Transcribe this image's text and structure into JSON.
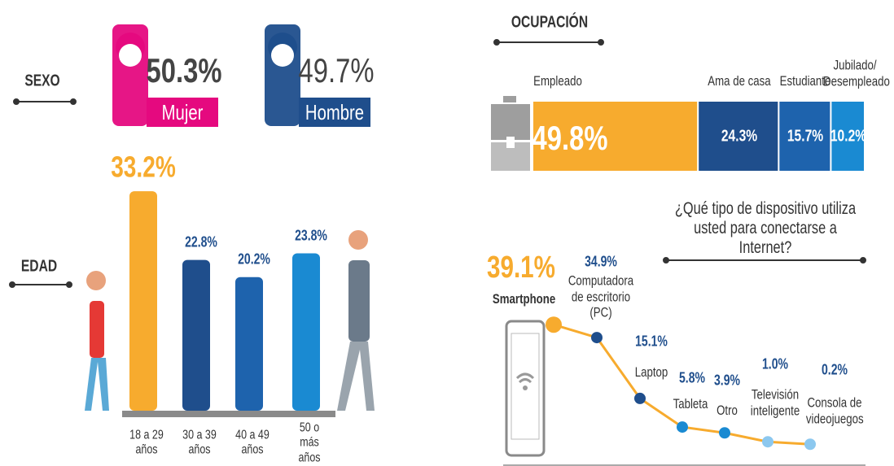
{
  "chart_data": [
    {
      "type": "pictogram",
      "title": "SEXO",
      "categories": [
        "Mujer",
        "Hombre"
      ],
      "values": [
        50.3,
        49.7
      ],
      "value_labels": [
        "50.3%",
        "49.7%"
      ],
      "colors": [
        "#e5097f",
        "#1f4e8c"
      ]
    },
    {
      "type": "bar",
      "title": "EDAD",
      "categories": [
        "18 a 29 años",
        "30 a 39 años",
        "40 a 49 años",
        "50 o más años"
      ],
      "values": [
        33.2,
        22.8,
        20.2,
        23.8
      ],
      "value_labels": [
        "33.2%",
        "22.8%",
        "20.2%",
        "23.8%"
      ],
      "colors": [
        "#f7ab2e",
        "#1f4e8c",
        "#1e63ad",
        "#1a8ad2"
      ]
    },
    {
      "type": "stacked-bar",
      "title": "OCUPACIÓN",
      "series": [
        {
          "name": "Empleado",
          "color": "#f7ab2e",
          "values": [
            49.8
          ],
          "value_labels": [
            "49.8%"
          ]
        },
        {
          "name": "Ama de casa",
          "color": "#1f4e8c",
          "values": [
            24.3
          ],
          "value_labels": [
            "24.3%"
          ]
        },
        {
          "name": "Estudiante",
          "color": "#1e63ad",
          "values": [
            15.7
          ],
          "value_labels": [
            "15.7%"
          ]
        },
        {
          "name": "Jubilado/ Desempleado",
          "color": "#1a8ad2",
          "values": [
            10.2
          ],
          "value_labels": [
            "10.2%"
          ]
        }
      ]
    },
    {
      "type": "line",
      "title": "¿Qué tipo de dispositivo utiliza usted para conectarse a Internet?",
      "categories": [
        "Smartphone",
        "Computadora de escritorio (PC)",
        "Laptop",
        "Tableta",
        "Otro",
        "Televisión inteligente",
        "Consola de videojuegos"
      ],
      "values": [
        39.1,
        34.9,
        15.1,
        5.8,
        3.9,
        1.0,
        0.2
      ],
      "value_labels": [
        "39.1%",
        "34.9%",
        "15.1%",
        "5.8%",
        "3.9%",
        "1.0%",
        "0.2%"
      ],
      "color": "#f7ab2e",
      "point_colors": [
        "#f7ab2e",
        "#1f4e8c",
        "#1f4e8c",
        "#1a8ad2",
        "#1a8ad2",
        "#8cc8ef",
        "#8cc8ef"
      ]
    }
  ]
}
